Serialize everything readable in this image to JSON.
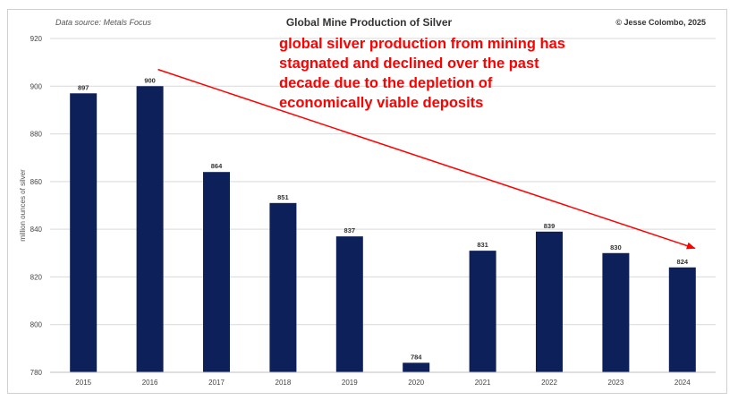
{
  "header": {
    "source": "Data source: Metals Focus",
    "copyright": "© Jesse Colombo, 2025"
  },
  "annotation": "global silver production from mining has stagnated and declined over the past decade due to the depletion of economically viable deposits",
  "colors": {
    "bar": "#0d2059",
    "grid": "#d9d9d9",
    "annotation": "#ff0000",
    "arrow": "#ff0000"
  },
  "chart_data": {
    "type": "bar",
    "title": "Global Mine Production of Silver",
    "xlabel": "",
    "ylabel": "million ounces of silver",
    "categories": [
      "2015",
      "2016",
      "2017",
      "2018",
      "2019",
      "2020",
      "2021",
      "2022",
      "2023",
      "2024"
    ],
    "values": [
      897,
      900,
      864,
      851,
      837,
      784,
      831,
      839,
      830,
      824
    ],
    "data_labels": [
      "897",
      "900",
      "864",
      "851",
      "837",
      "784",
      "831",
      "839",
      "830",
      "824"
    ],
    "ylim": [
      780,
      920
    ],
    "yticks": [
      780,
      800,
      820,
      840,
      860,
      880,
      900,
      920
    ],
    "ytick_labels": [
      "780",
      "800",
      "820",
      "840",
      "860",
      "880",
      "900",
      "920"
    ],
    "grid": true,
    "legend": "none",
    "trend_arrow": {
      "from": {
        "category": "2016",
        "value": 907
      },
      "to": {
        "category": "2024",
        "value": 832
      }
    }
  }
}
